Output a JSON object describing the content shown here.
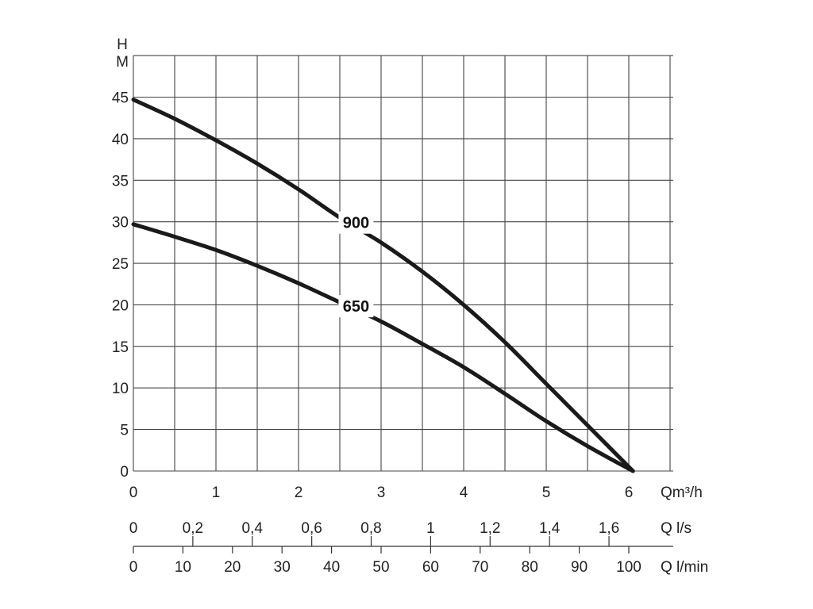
{
  "chart_data": {
    "type": "line",
    "y_axis": {
      "label_line1": "H",
      "label_line2": "M",
      "ticks": [
        0,
        5,
        10,
        15,
        20,
        25,
        30,
        35,
        40,
        45
      ],
      "ylim": [
        0,
        50
      ]
    },
    "x_axis": {
      "unit": "Qm³/h",
      "ticks": [
        0,
        1,
        2,
        3,
        4,
        5,
        6
      ],
      "xlim": [
        0,
        6.5
      ],
      "grid_step": 0.5
    },
    "secondary_axes": [
      {
        "unit": "Q l/s",
        "ticks": [
          {
            "value": 0,
            "label": "0"
          },
          {
            "value": 0.2,
            "label": "0,2"
          },
          {
            "value": 0.4,
            "label": "0,4"
          },
          {
            "value": 0.6,
            "label": "0,6"
          },
          {
            "value": 0.8,
            "label": "0,8"
          },
          {
            "value": 1,
            "label": "1"
          },
          {
            "value": 1.2,
            "label": "1,2"
          },
          {
            "value": 1.4,
            "label": "1,4"
          },
          {
            "value": 1.6,
            "label": "1,6"
          }
        ]
      },
      {
        "unit": "Q l/min",
        "ticks": [
          {
            "value": 0,
            "label": "0"
          },
          {
            "value": 10,
            "label": "10"
          },
          {
            "value": 20,
            "label": "20"
          },
          {
            "value": 30,
            "label": "30"
          },
          {
            "value": 40,
            "label": "40"
          },
          {
            "value": 50,
            "label": "50"
          },
          {
            "value": 60,
            "label": "60"
          },
          {
            "value": 70,
            "label": "70"
          },
          {
            "value": 80,
            "label": "80"
          },
          {
            "value": 90,
            "label": "90"
          },
          {
            "value": 100,
            "label": "100"
          }
        ]
      }
    ],
    "grid": true,
    "series": [
      {
        "name": "900",
        "x": [
          0,
          0.5,
          1,
          1.5,
          2,
          2.5,
          3,
          3.5,
          4,
          4.5,
          5,
          5.5,
          6.05
        ],
        "y": [
          44.7,
          42.4,
          39.8,
          37.0,
          33.9,
          30.5,
          27.5,
          24.0,
          20.0,
          15.5,
          10.5,
          5.5,
          0
        ]
      },
      {
        "name": "650",
        "x": [
          0,
          0.5,
          1,
          1.5,
          2,
          2.5,
          3,
          3.5,
          4,
          4.5,
          5,
          5.5,
          6.05
        ],
        "y": [
          29.7,
          28.2,
          26.6,
          24.7,
          22.6,
          20.3,
          18.0,
          15.3,
          12.5,
          9.3,
          6.0,
          3.0,
          0
        ]
      }
    ]
  }
}
